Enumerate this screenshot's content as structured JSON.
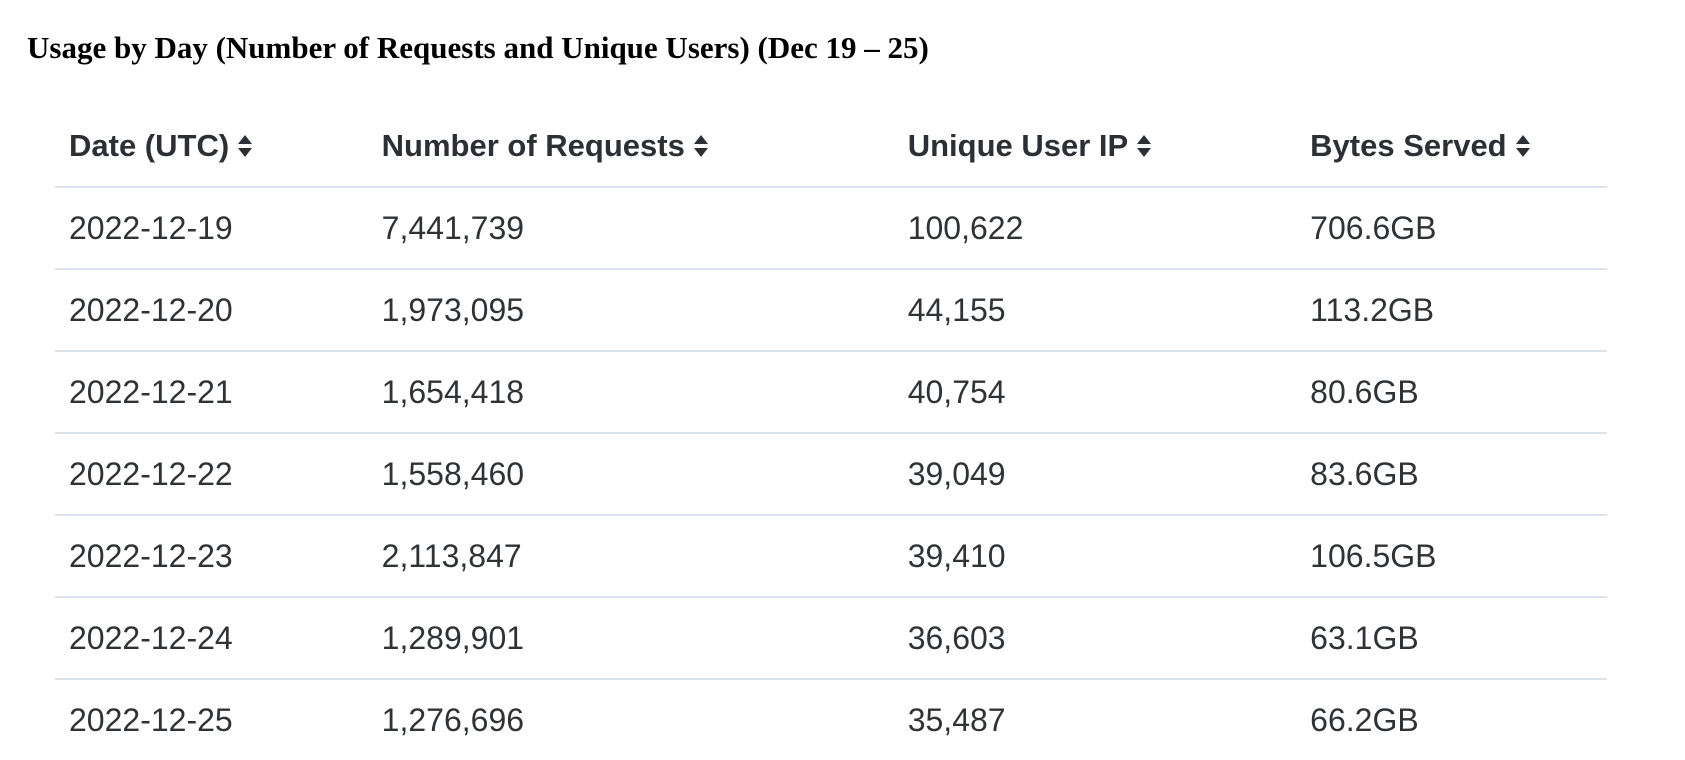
{
  "title": "Usage by Day (Number of Requests and Unique Users) (Dec 19 – 25)",
  "table": {
    "headers": [
      {
        "label": "Date (UTC)",
        "icon": "sort-icon"
      },
      {
        "label": "Number of Requests",
        "icon": "sort-icon"
      },
      {
        "label": "Unique User IP",
        "icon": "sort-icon"
      },
      {
        "label": "Bytes Served",
        "icon": "sort-icon"
      }
    ],
    "rows": [
      [
        "2022-12-19",
        "7,441,739",
        "100,622",
        "706.6GB"
      ],
      [
        "2022-12-20",
        "1,973,095",
        "44,155",
        "113.2GB"
      ],
      [
        "2022-12-21",
        "1,654,418",
        "40,754",
        "80.6GB"
      ],
      [
        "2022-12-22",
        "1,558,460",
        "39,049",
        "83.6GB"
      ],
      [
        "2022-12-23",
        "2,113,847",
        "39,410",
        "106.5GB"
      ],
      [
        "2022-12-24",
        "1,289,901",
        "36,603",
        "63.1GB"
      ],
      [
        "2022-12-25",
        "1,276,696",
        "35,487",
        "66.2GB"
      ]
    ]
  },
  "colors": {
    "text": "#2f3336",
    "divider": "#dde3ea",
    "title": "#000000"
  }
}
